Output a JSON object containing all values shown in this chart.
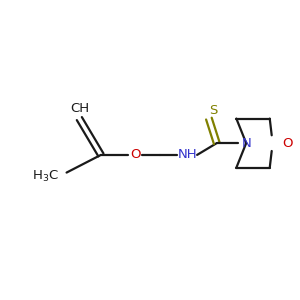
{
  "background_color": "#ffffff",
  "figure_size": [
    3.0,
    3.0
  ],
  "dpi": 100,
  "line_color": "#1a1a1a",
  "lw": 1.6,
  "colors": {
    "C": "#1a1a1a",
    "N": "#3333cc",
    "O": "#cc0000",
    "S": "#808000"
  },
  "fontsize": 9.5
}
